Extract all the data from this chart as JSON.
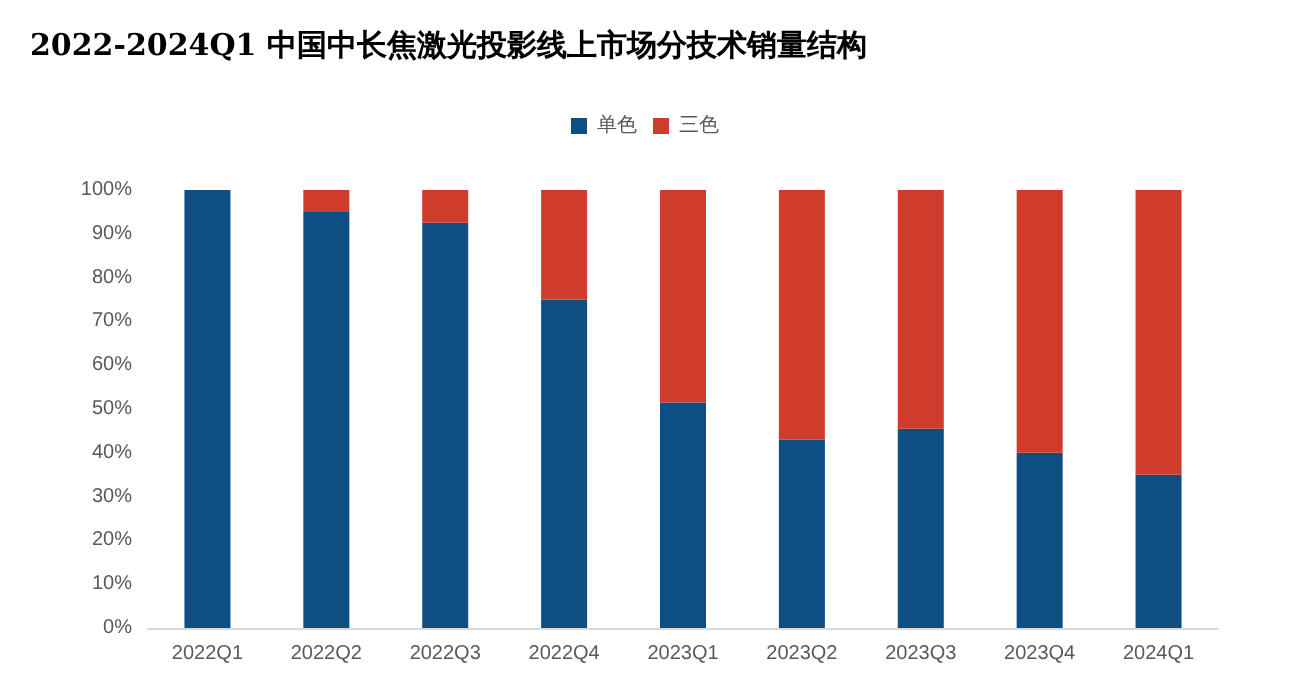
{
  "chart_data": {
    "type": "bar",
    "title": "2022-2024Q1 中国中长焦激光投影线上市场分技术销量结构",
    "categories": [
      "2022Q1",
      "2022Q2",
      "2022Q3",
      "2022Q4",
      "2023Q1",
      "2023Q2",
      "2023Q3",
      "2023Q4",
      "2024Q1"
    ],
    "stacked": true,
    "series": [
      {
        "name": "单色",
        "color": "#0e4e82",
        "values": [
          100,
          95,
          92.5,
          75,
          51.5,
          43,
          45.5,
          40,
          35
        ]
      },
      {
        "name": "三色",
        "color": "#d03c2b",
        "values": [
          0,
          5,
          7.5,
          25,
          48.5,
          57,
          54.5,
          60,
          65
        ]
      }
    ],
    "ylim": [
      0,
      100
    ],
    "yticks": [
      {
        "value": 0,
        "label": "0%"
      },
      {
        "value": 10,
        "label": "10%"
      },
      {
        "value": 20,
        "label": "20%"
      },
      {
        "value": 30,
        "label": "30%"
      },
      {
        "value": 40,
        "label": "40%"
      },
      {
        "value": 50,
        "label": "50%"
      },
      {
        "value": 60,
        "label": "60%"
      },
      {
        "value": 70,
        "label": "70%"
      },
      {
        "value": 80,
        "label": "80%"
      },
      {
        "value": 90,
        "label": "90%"
      },
      {
        "value": 100,
        "label": "100%"
      }
    ],
    "grid": false,
    "legend": "top"
  }
}
